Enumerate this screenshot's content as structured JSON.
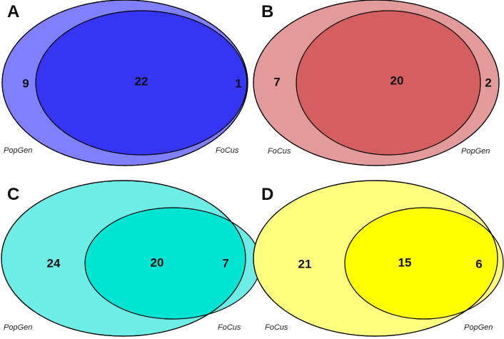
{
  "panels": [
    {
      "letter": "A",
      "left_set": "PopGen",
      "right_set": "FoCus",
      "only_left": "9",
      "overlap": "22",
      "only_right": "1",
      "outer_color": "#8080ff",
      "inner_color": "#3535f3"
    },
    {
      "letter": "B",
      "left_set": "FoCus",
      "right_set": "PopGen",
      "only_left": "7",
      "overlap": "20",
      "only_right": "2",
      "outer_color": "#e39a9a",
      "inner_color": "#d55f60"
    },
    {
      "letter": "C",
      "left_set": "PopGen",
      "right_set": "FoCus",
      "only_left": "24",
      "overlap": "20",
      "only_right": "7",
      "outer_color": "#6eede6",
      "inner_color": "#00e4d4"
    },
    {
      "letter": "D",
      "left_set": "FoCus",
      "right_set": "PopGen",
      "only_left": "21",
      "overlap": "15",
      "only_right": "6",
      "outer_color": "#ffff80",
      "inner_color": "#ffff00"
    }
  ]
}
